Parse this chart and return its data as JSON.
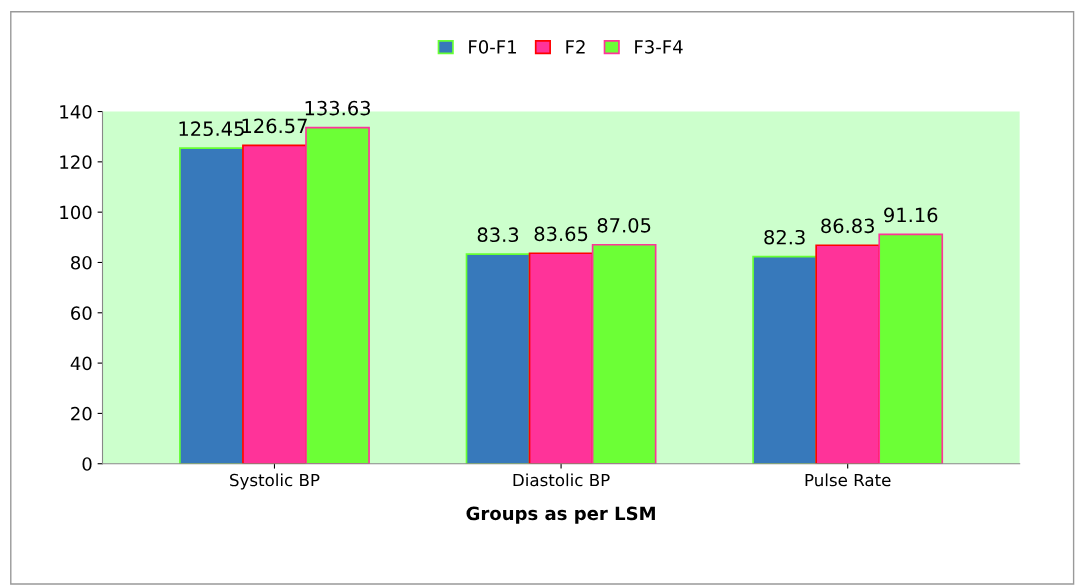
{
  "chart_data": {
    "type": "bar",
    "xlabel": "Groups as per LSM",
    "categories": [
      "Systolic BP",
      "Diastolic BP",
      "Pulse Rate"
    ],
    "series": [
      {
        "name": "F0-F1",
        "color": "#3779bb",
        "values": [
          125.45,
          83.3,
          82.3
        ]
      },
      {
        "name": "F2",
        "color": "#ff3399",
        "values": [
          126.57,
          83.65,
          86.83
        ]
      },
      {
        "name": "F3-F4",
        "color": "#6cff36",
        "values": [
          133.63,
          87.05,
          91.16
        ]
      }
    ],
    "ylim": [
      0,
      140
    ],
    "yticks": [
      0,
      20,
      40,
      60,
      80,
      100,
      120,
      140
    ],
    "data_labels": true,
    "legend": "top",
    "grid": false
  }
}
